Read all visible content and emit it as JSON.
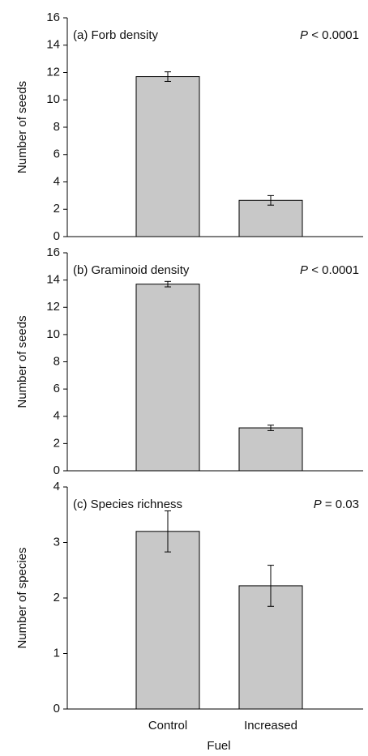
{
  "chart_data": [
    {
      "type": "bar",
      "title": "(a) Forb density",
      "p_symbol": "P",
      "p_text": "< 0.0001",
      "ylabel": "Number of seeds",
      "categories": [
        null,
        null
      ],
      "values": [
        11.7,
        2.65
      ],
      "errors": [
        0.35,
        0.35
      ],
      "color": "#c8c8c8",
      "ylim": [
        0,
        16
      ],
      "yticks": [
        0,
        2,
        4,
        6,
        8,
        10,
        12,
        14,
        16
      ]
    },
    {
      "type": "bar",
      "title": "(b) Graminoid density",
      "p_symbol": "P",
      "p_text": "< 0.0001",
      "ylabel": "Number of seeds",
      "categories": [
        null,
        null
      ],
      "values": [
        13.7,
        3.15
      ],
      "errors": [
        0.2,
        0.2
      ],
      "color": "#c8c8c8",
      "ylim": [
        0,
        16
      ],
      "yticks": [
        0,
        2,
        4,
        6,
        8,
        10,
        12,
        14,
        16
      ]
    },
    {
      "type": "bar",
      "title": "(c) Species richness",
      "p_symbol": "P",
      "p_text": "= 0.03",
      "ylabel": "Number of species",
      "xlabel": "Fuel",
      "categories": [
        "Control",
        "Increased"
      ],
      "values": [
        3.2,
        2.22
      ],
      "errors": [
        0.37,
        0.37
      ],
      "color": "#c8c8c8",
      "ylim": [
        0,
        4
      ],
      "yticks": [
        0,
        1,
        2,
        3,
        4
      ]
    }
  ]
}
